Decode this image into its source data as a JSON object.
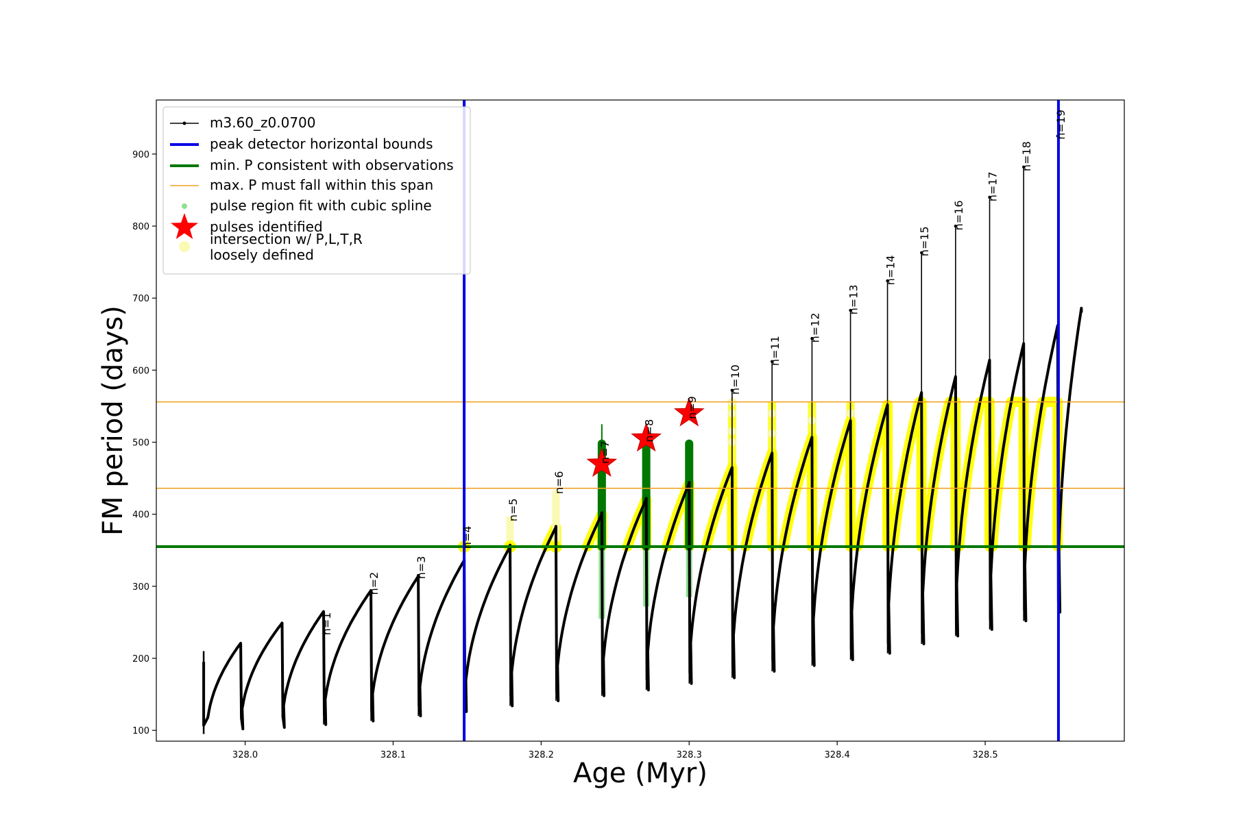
{
  "chart_data": {
    "type": "line",
    "xlabel": "Age (Myr)",
    "ylabel": "FM period (days)",
    "xlim": [
      327.94,
      328.594
    ],
    "ylim": [
      85,
      975
    ],
    "xticks": [
      328.0,
      328.1,
      328.2,
      328.3,
      328.4,
      328.5
    ],
    "yticks": [
      100,
      200,
      300,
      400,
      500,
      600,
      700,
      800,
      900
    ],
    "start": {
      "x": 327.972,
      "y": 195
    },
    "cycles": [
      {
        "x": 327.997,
        "y_peak": 221,
        "y_min": 102
      },
      {
        "x": 328.025,
        "y_peak": 249,
        "y_min": 104
      },
      {
        "x": 328.053,
        "y_peak": 265,
        "y_min": 108
      },
      {
        "x": 328.085,
        "y_peak": 294,
        "y_min": 113
      },
      {
        "x": 328.117,
        "y_peak": 314,
        "y_min": 120
      },
      {
        "x": 328.148,
        "y_peak": 336,
        "y_min": 126
      },
      {
        "x": 328.179,
        "y_peak": 355,
        "y_min": 134
      },
      {
        "x": 328.21,
        "y_peak": 382,
        "y_min": 141
      },
      {
        "x": 328.241,
        "y_peak": 400,
        "y_min": 148
      },
      {
        "x": 328.271,
        "y_peak": 421,
        "y_min": 156
      },
      {
        "x": 328.3,
        "y_peak": 443,
        "y_min": 165
      },
      {
        "x": 328.329,
        "y_peak": 465,
        "y_min": 173
      },
      {
        "x": 328.356,
        "y_peak": 485,
        "y_min": 182
      },
      {
        "x": 328.383,
        "y_peak": 507,
        "y_min": 190
      },
      {
        "x": 328.409,
        "y_peak": 530,
        "y_min": 198
      },
      {
        "x": 328.434,
        "y_peak": 552,
        "y_min": 207
      },
      {
        "x": 328.457,
        "y_peak": 569,
        "y_min": 220
      },
      {
        "x": 328.48,
        "y_peak": 591,
        "y_min": 231
      },
      {
        "x": 328.503,
        "y_peak": 614,
        "y_min": 240
      },
      {
        "x": 328.526,
        "y_peak": 637,
        "y_min": 252
      },
      {
        "x": 328.549,
        "y_peak": 662,
        "y_min": 264
      }
    ],
    "final": {
      "x": 328.565,
      "y": 680,
      "y_peak": 686
    },
    "spikes": [
      {
        "x": 328.053,
        "top": 262
      },
      {
        "x": 328.085,
        "top": 294
      },
      {
        "x": 328.117,
        "top": 315
      },
      {
        "x": 328.148,
        "top": 336
      },
      {
        "x": 328.179,
        "top": 357
      },
      {
        "x": 328.21,
        "top": 383
      },
      {
        "x": 328.241,
        "top": 402
      },
      {
        "x": 328.271,
        "top": 422
      },
      {
        "x": 328.3,
        "top": 444
      },
      {
        "x": 328.329,
        "top": 572
      },
      {
        "x": 328.356,
        "top": 612
      },
      {
        "x": 328.383,
        "top": 644
      },
      {
        "x": 328.409,
        "top": 683
      },
      {
        "x": 328.434,
        "top": 724
      },
      {
        "x": 328.457,
        "top": 763
      },
      {
        "x": 328.48,
        "top": 800
      },
      {
        "x": 328.503,
        "top": 840
      },
      {
        "x": 328.526,
        "top": 882
      },
      {
        "x": 328.549,
        "top": 925
      }
    ],
    "n_labels": [
      {
        "text": "n=1",
        "x": 328.053,
        "y": 232
      },
      {
        "text": "n=2",
        "x": 328.085,
        "y": 288
      },
      {
        "text": "n=3",
        "x": 328.117,
        "y": 310
      },
      {
        "text": "n=4",
        "x": 328.148,
        "y": 352
      },
      {
        "text": "n=5",
        "x": 328.179,
        "y": 390
      },
      {
        "text": "n=6",
        "x": 328.21,
        "y": 428
      },
      {
        "text": "n=7",
        "x": 328.241,
        "y": 470
      },
      {
        "text": "n=8",
        "x": 328.271,
        "y": 500
      },
      {
        "text": "n=9",
        "x": 328.3,
        "y": 532
      },
      {
        "text": "n=10",
        "x": 328.329,
        "y": 566
      },
      {
        "text": "n=11",
        "x": 328.356,
        "y": 606
      },
      {
        "text": "n=12",
        "x": 328.383,
        "y": 638
      },
      {
        "text": "n=13",
        "x": 328.409,
        "y": 677
      },
      {
        "text": "n=14",
        "x": 328.434,
        "y": 718
      },
      {
        "text": "n=15",
        "x": 328.457,
        "y": 758
      },
      {
        "text": "n=16",
        "x": 328.48,
        "y": 794
      },
      {
        "text": "n=17",
        "x": 328.503,
        "y": 834
      },
      {
        "text": "n=18",
        "x": 328.526,
        "y": 876
      },
      {
        "text": "n=19",
        "x": 328.549,
        "y": 920
      }
    ],
    "blue_bounds": [
      328.148,
      328.5495
    ],
    "green_min_p": 355,
    "orange_span": [
      436,
      556
    ],
    "yellow_band": [
      355,
      556
    ],
    "yellow_spike_points": [
      {
        "x": 328.329,
        "values": [
          500,
          515,
          540,
          555
        ]
      },
      {
        "x": 328.356,
        "values": [
          512,
          540
        ]
      },
      {
        "x": 328.383,
        "values": [
          530
        ]
      },
      {
        "x": 328.409,
        "values": [
          540
        ]
      }
    ],
    "green_pulses": [
      {
        "x": 328.241,
        "y_top": 498,
        "y_spike": 525,
        "light_bottom": 255
      },
      {
        "x": 328.271,
        "y_top": 498,
        "y_spike": 500,
        "light_bottom": 272
      },
      {
        "x": 328.3,
        "y_top": 498,
        "y_spike": 500,
        "light_bottom": 285
      }
    ],
    "stars": [
      {
        "x": 328.241,
        "y": 470
      },
      {
        "x": 328.271,
        "y": 505
      },
      {
        "x": 328.3,
        "y": 540
      }
    ],
    "legend": {
      "placement": "upper-left",
      "entries": [
        {
          "label": "m3.60_z0.0700",
          "style": "black-line-dot",
          "color": "#000000"
        },
        {
          "label": "peak detector horizontal bounds",
          "style": "line",
          "color": "#0000e6"
        },
        {
          "label": "min. P consistent with observations",
          "style": "line",
          "color": "#007800"
        },
        {
          "label": "max. P must fall within this span",
          "style": "thin-line",
          "color": "#f2a427"
        },
        {
          "label": "pulse region fit with cubic spline",
          "style": "dot",
          "color": "#8fe08f"
        },
        {
          "label": "pulses identified",
          "style": "star",
          "color": "#ff0000"
        },
        {
          "label": "intersection w/ P,L,T,R\nloosely defined",
          "style": "pale-dot",
          "color": "#fafab4"
        }
      ]
    }
  }
}
